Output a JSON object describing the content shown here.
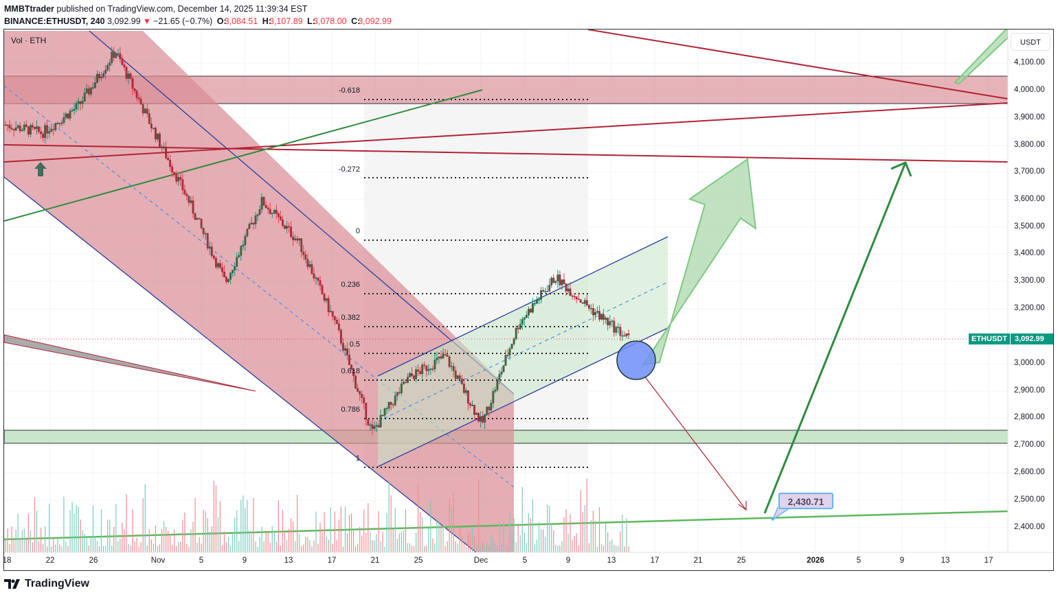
{
  "header": {
    "publisher": "MMBTtrader",
    "published_text": " published on TradingView.com, December 14, 2025 11:39:34 EST",
    "symbol": "BINANCE:ETHUSDT, 240",
    "last_price": "3,092.99",
    "change_arrow": "▼",
    "change": "−21.65 (−0.7%)",
    "o_label": "O:",
    "o": "3,084.51",
    "h_label": "H:",
    "h": "3,107.89",
    "l_label": "L:",
    "l": "3,078.00",
    "c_label": "C:",
    "c": "3,092.99"
  },
  "chart": {
    "volume_label": "Vol · ETH",
    "currency_unit": "USDT",
    "y_ticks": [
      "4,100.00",
      "4,000.00",
      "3,900.00",
      "3,800.00",
      "3,700.00",
      "3,600.00",
      "3,500.00",
      "3,400.00",
      "3,300.00",
      "3,200.00",
      "3,000.00",
      "2,900.00",
      "2,800.00",
      "2,700.00",
      "2,600.00",
      "2,500.00",
      "2,400.00"
    ],
    "x_ticks": [
      "18",
      "22",
      "26",
      "Nov",
      "5",
      "9",
      "13",
      "17",
      "21",
      "25",
      "Dec",
      "5",
      "9",
      "13",
      "17",
      "21",
      "25",
      "2026",
      "5",
      "9",
      "13",
      "17"
    ],
    "price_tag_symbol": "ETHUSDT",
    "price_tag_value": "3,092.99",
    "target_callout": "2,430.71",
    "fib_levels": [
      "-0.618",
      "-0.272",
      "0",
      "0.236",
      "0.382",
      "0.5",
      "0.618",
      "0.786",
      "1"
    ]
  },
  "footer": {
    "brand": "TradingView"
  },
  "colors": {
    "up": "#089981",
    "down": "#f23645",
    "channel_fill": "#d98b94",
    "support_zone": "#c8e6c9",
    "resistance_zone": "#d98b94"
  },
  "chart_data": {
    "type": "candlestick",
    "title": "BINANCE:ETHUSDT, 240",
    "xlabel": "",
    "ylabel": "USDT",
    "ylim": [
      2330,
      4160
    ],
    "x_tick_labels": [
      "18",
      "22",
      "26",
      "Nov",
      "5",
      "9",
      "13",
      "17",
      "21",
      "25",
      "Dec",
      "5",
      "9",
      "13",
      "17",
      "21",
      "25",
      "2026",
      "5",
      "9",
      "13",
      "17"
    ],
    "ohlc_last": {
      "open": 3084.51,
      "high": 3107.89,
      "low": 3078.0,
      "close": 3092.99
    },
    "approx_path": [
      {
        "date": "Oct 18",
        "close": 3880
      },
      {
        "date": "Oct 22",
        "close": 3850
      },
      {
        "date": "Oct 26",
        "close": 3950
      },
      {
        "date": "Oct 28",
        "close": 4150
      },
      {
        "date": "Nov 1",
        "close": 3870
      },
      {
        "date": "Nov 4",
        "close": 3600
      },
      {
        "date": "Nov 5",
        "close": 3300
      },
      {
        "date": "Nov 10",
        "close": 3600
      },
      {
        "date": "Nov 13",
        "close": 3450
      },
      {
        "date": "Nov 17",
        "close": 3150
      },
      {
        "date": "Nov 21",
        "close": 2750
      },
      {
        "date": "Nov 25",
        "close": 2950
      },
      {
        "date": "Nov 28",
        "close": 3030
      },
      {
        "date": "Dec 1",
        "close": 2780
      },
      {
        "date": "Dec 4",
        "close": 3150
      },
      {
        "date": "Dec 9",
        "close": 3320
      },
      {
        "date": "Dec 11",
        "close": 3200
      },
      {
        "date": "Dec 14",
        "close": 3093
      }
    ],
    "fibonacci": [
      {
        "level": "-0.618",
        "price": 3970
      },
      {
        "level": "-0.272",
        "price": 3680
      },
      {
        "level": "0",
        "price": 3450
      },
      {
        "level": "0.236",
        "price": 3255
      },
      {
        "level": "0.382",
        "price": 3135
      },
      {
        "level": "0.5",
        "price": 3040
      },
      {
        "level": "0.618",
        "price": 2940
      },
      {
        "level": "0.786",
        "price": 2800
      },
      {
        "level": "1",
        "price": 2620
      }
    ],
    "zones": [
      {
        "name": "resistance",
        "from": 3955,
        "to": 4050
      },
      {
        "name": "support",
        "from": 2705,
        "to": 2755
      }
    ],
    "annotations": [
      {
        "type": "label",
        "text": "2,430.71",
        "price": 2430.71
      },
      {
        "type": "last_price",
        "text": "ETHUSDT 3,092.99"
      }
    ]
  }
}
